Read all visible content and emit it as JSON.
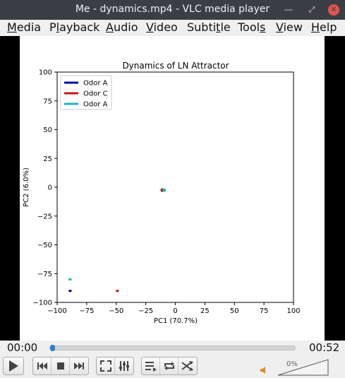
{
  "window": {
    "title": "Me - dynamics.mp4 - VLC media player"
  },
  "menubar": [
    {
      "pre": "",
      "u": "M",
      "post": "edia"
    },
    {
      "pre": "P",
      "u": "l",
      "post": "ayback"
    },
    {
      "pre": "",
      "u": "A",
      "post": "udio"
    },
    {
      "pre": "",
      "u": "V",
      "post": "ideo"
    },
    {
      "pre": "Subti",
      "u": "t",
      "post": "le"
    },
    {
      "pre": "Tool",
      "u": "s",
      "post": ""
    },
    {
      "pre": "",
      "u": "V",
      "post": "iew"
    },
    {
      "pre": "",
      "u": "H",
      "post": "elp"
    }
  ],
  "player": {
    "elapsed": "00:00",
    "total": "00:52",
    "progress": 0.01,
    "volume_label": "0%",
    "volume": 0
  },
  "chart_data": {
    "type": "scatter",
    "title": "Dynamics of LN Attractor",
    "xlabel": "PC1 (70.7%)",
    "ylabel": "PC2 (6.0%)",
    "xlim": [
      -100,
      100
    ],
    "ylim": [
      -100,
      100
    ],
    "xticks": [
      -100,
      -75,
      -50,
      -25,
      0,
      25,
      50,
      75,
      100
    ],
    "yticks": [
      -100,
      -75,
      -50,
      -25,
      0,
      25,
      50,
      75,
      100
    ],
    "legend_position": "top-left",
    "grid": false,
    "series": [
      {
        "name": "Odor A",
        "color": "#0000aa",
        "points": [
          [
            -89,
            -90
          ]
        ],
        "dots": [
          [
            -11,
            -2.5
          ]
        ]
      },
      {
        "name": "Odor C",
        "color": "#cc1111",
        "points": [
          [
            -49,
            -90
          ]
        ],
        "dots": [
          [
            -11,
            -2.5
          ]
        ]
      },
      {
        "name": "Odor A",
        "color": "#1fb5b5",
        "points": [
          [
            -89,
            -80
          ]
        ],
        "dots": [
          [
            -9.5,
            -2.5
          ]
        ]
      }
    ]
  }
}
